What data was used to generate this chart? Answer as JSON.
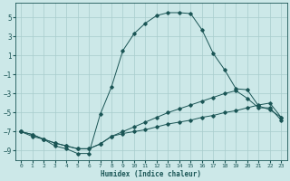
{
  "xlabel": "Humidex (Indice chaleur)",
  "xlim": [
    -0.5,
    23.5
  ],
  "ylim": [
    -10,
    6.5
  ],
  "yticks": [
    5,
    3,
    1,
    -1,
    -3,
    -5,
    -7,
    -9
  ],
  "xticks": [
    0,
    1,
    2,
    3,
    4,
    5,
    6,
    7,
    8,
    9,
    10,
    11,
    12,
    13,
    14,
    15,
    16,
    17,
    18,
    19,
    20,
    21,
    22,
    23
  ],
  "bg_color": "#cce8e8",
  "grid_color": "#a8cccc",
  "line_color": "#1a5555",
  "line1_x": [
    0,
    1,
    2,
    3,
    4,
    5,
    6,
    7,
    8,
    9,
    10,
    11,
    12,
    13,
    14,
    15,
    16,
    17,
    18,
    19,
    20,
    21,
    22,
    23
  ],
  "line1_y": [
    -7.0,
    -7.5,
    -7.8,
    -8.5,
    -8.8,
    -9.3,
    -9.3,
    -5.2,
    -2.3,
    1.5,
    3.3,
    4.4,
    5.2,
    5.5,
    5.5,
    5.4,
    3.7,
    1.2,
    -0.5,
    -2.5,
    -2.6,
    -4.3,
    -4.7,
    -5.5
  ],
  "line2_x": [
    0,
    1,
    2,
    3,
    4,
    5,
    6,
    7,
    8,
    9,
    10,
    11,
    12,
    13,
    14,
    15,
    16,
    17,
    18,
    19,
    20,
    21,
    22,
    23
  ],
  "line2_y": [
    -7.0,
    -7.3,
    -7.8,
    -8.2,
    -8.5,
    -8.8,
    -8.8,
    -8.3,
    -7.5,
    -7.0,
    -6.5,
    -6.0,
    -5.5,
    -5.0,
    -4.6,
    -4.2,
    -3.8,
    -3.4,
    -3.0,
    -2.7,
    -3.5,
    -4.5,
    -4.5,
    -5.8
  ],
  "line3_x": [
    0,
    1,
    2,
    3,
    4,
    5,
    6,
    7,
    8,
    9,
    10,
    11,
    12,
    13,
    14,
    15,
    16,
    17,
    18,
    19,
    20,
    21,
    22,
    23
  ],
  "line3_y": [
    -7.0,
    -7.3,
    -7.8,
    -8.2,
    -8.5,
    -8.8,
    -8.8,
    -8.3,
    -7.5,
    -7.2,
    -7.0,
    -6.8,
    -6.5,
    -6.2,
    -6.0,
    -5.8,
    -5.5,
    -5.3,
    -5.0,
    -4.8,
    -4.5,
    -4.2,
    -4.0,
    -5.5
  ]
}
